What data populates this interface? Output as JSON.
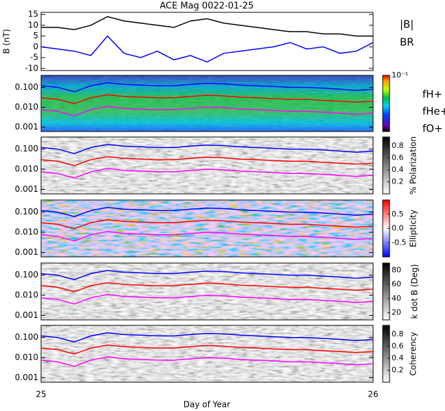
{
  "title": "ACE Mag 0022-01-25",
  "x_label": "Day of Year",
  "xlim": [
    25,
    26
  ],
  "xticks": [
    25,
    26
  ],
  "chart_data": [
    {
      "type": "line",
      "ylabel": "B (nT)",
      "x": [
        25.0,
        25.05,
        25.1,
        25.15,
        25.2,
        25.25,
        25.3,
        25.35,
        25.4,
        25.45,
        25.5,
        25.55,
        25.6,
        25.65,
        25.7,
        25.75,
        25.8,
        25.85,
        25.9,
        25.95,
        26.0
      ],
      "ylim": [
        -11,
        16
      ],
      "yticks": [
        -10,
        -5,
        0,
        5,
        10,
        15
      ],
      "series": [
        {
          "name": "|B|",
          "color": "#000000",
          "values": [
            9,
            9,
            8,
            10,
            14,
            12,
            11,
            10,
            9,
            12,
            13,
            11,
            10,
            9,
            8,
            7,
            7,
            6,
            6,
            5,
            5
          ]
        },
        {
          "name": "BR",
          "color": "#0000ff",
          "values": [
            0,
            -1,
            -2,
            -4,
            5,
            -3,
            -5,
            -2,
            -6,
            -4,
            -7,
            -3,
            -2,
            -1,
            0,
            2,
            -1,
            0,
            -3,
            -2,
            2
          ]
        }
      ]
    },
    {
      "type": "spectrogram",
      "palette": "rainbow",
      "log_y": true,
      "x": [
        25.0,
        25.05,
        25.1,
        25.15,
        25.2,
        25.25,
        25.3,
        25.35,
        25.4,
        25.45,
        25.5,
        25.55,
        25.6,
        25.65,
        25.7,
        25.75,
        25.8,
        25.85,
        25.9,
        25.95,
        26.0
      ],
      "ylim": [
        0.0006,
        0.4
      ],
      "yticks": [
        {
          "value": 0.001,
          "label": "0.001"
        },
        {
          "value": 0.01,
          "label": "0.010"
        },
        {
          "value": 0.1,
          "label": "0.100"
        }
      ],
      "clim": [
        1e-06,
        0.1
      ],
      "log_c": true,
      "cticks": [
        {
          "value": 0.1,
          "label": "10⁻¹"
        }
      ],
      "series": [
        {
          "name": "fH+",
          "color": "#0000ff",
          "values": [
            0.12,
            0.1,
            0.06,
            0.12,
            0.17,
            0.14,
            0.13,
            0.12,
            0.12,
            0.14,
            0.16,
            0.15,
            0.13,
            0.12,
            0.11,
            0.1,
            0.1,
            0.09,
            0.08,
            0.07,
            0.08
          ]
        },
        {
          "name": "fHe+",
          "color": "#ff0000",
          "values": [
            0.03,
            0.025,
            0.015,
            0.03,
            0.042,
            0.035,
            0.032,
            0.03,
            0.03,
            0.035,
            0.04,
            0.037,
            0.032,
            0.03,
            0.027,
            0.025,
            0.025,
            0.022,
            0.02,
            0.018,
            0.02
          ]
        },
        {
          "name": "fO+",
          "color": "#ff00ff",
          "values": [
            0.0075,
            0.0062,
            0.0037,
            0.0075,
            0.011,
            0.0087,
            0.0081,
            0.0075,
            0.0075,
            0.0087,
            0.01,
            0.0094,
            0.0081,
            0.0075,
            0.0069,
            0.0062,
            0.0062,
            0.0056,
            0.005,
            0.0044,
            0.005
          ]
        }
      ]
    },
    {
      "type": "spectrogram",
      "palette": "gray",
      "clabel": "% Polarization",
      "clim": [
        0,
        0.95
      ],
      "cticks": [
        0.2,
        0.4,
        0.6,
        0.8
      ]
    },
    {
      "type": "spectrogram",
      "palette": "bwr",
      "clabel": "Ellipticity",
      "clim": [
        -1,
        1
      ],
      "cticks": [
        -0.5,
        {
          "value": 0,
          "label": "0.0"
        },
        0.5
      ]
    },
    {
      "type": "spectrogram",
      "palette": "gray",
      "clabel": "k dot B (Deg)",
      "clim": [
        10,
        90
      ],
      "cticks": [
        20,
        40,
        60,
        80
      ]
    },
    {
      "type": "spectrogram",
      "palette": "gray",
      "clabel": "Coherency",
      "clim": [
        0,
        0.95
      ],
      "cticks": [
        0.2,
        0.4,
        0.6,
        0.8
      ]
    }
  ]
}
